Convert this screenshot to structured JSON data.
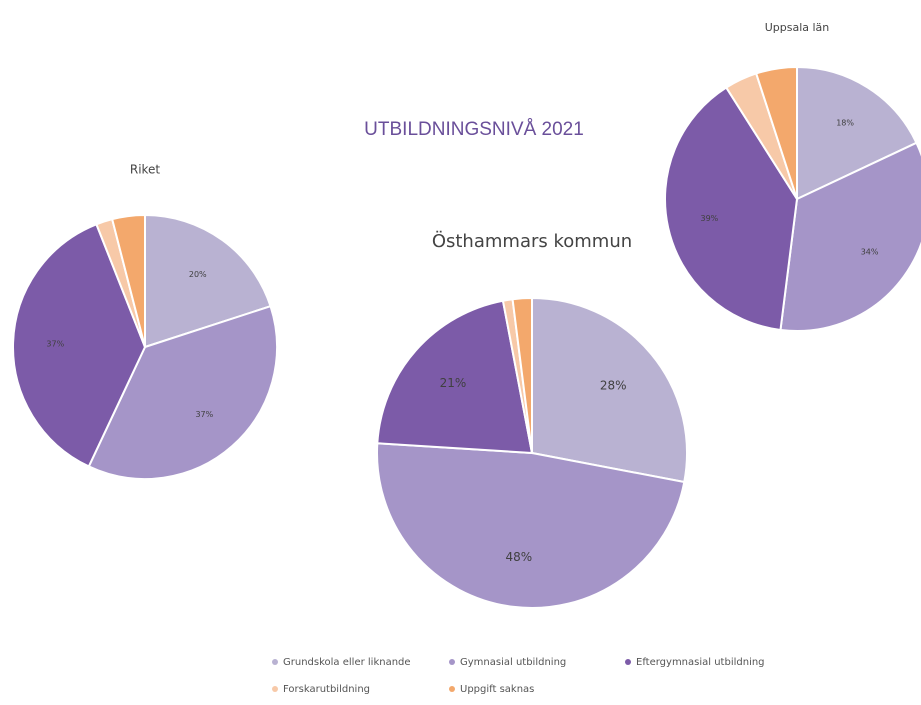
{
  "title": "UTBILDNINGSNIVÅ 2021",
  "chart_data": [
    {
      "type": "pie",
      "title": "Riket",
      "categories": [
        "Grundskola eller liknande",
        "Gymnasial utbildning",
        "Eftergymnasial utbildning",
        "Forskarutbildning",
        "Uppgift saknas"
      ],
      "values": [
        20,
        37,
        37,
        2,
        4
      ],
      "value_labels": [
        "20%",
        "37%",
        "37%",
        null,
        null
      ],
      "colors": [
        "#b9b2d2",
        "#a595c8",
        "#7c5ba8",
        "#f7c9a8",
        "#f3a86c"
      ]
    },
    {
      "type": "pie",
      "title": "Östhammars kommun",
      "categories": [
        "Grundskola eller liknande",
        "Gymnasial utbildning",
        "Eftergymnasial utbildning",
        "Forskarutbildning",
        "Uppgift saknas"
      ],
      "values": [
        28,
        48,
        21,
        1,
        2
      ],
      "value_labels": [
        "28%",
        "48%",
        "21%",
        null,
        null
      ],
      "colors": [
        "#b9b2d2",
        "#a595c8",
        "#7c5ba8",
        "#f7c9a8",
        "#f3a86c"
      ]
    },
    {
      "type": "pie",
      "title": "Uppsala län",
      "categories": [
        "Grundskola eller liknande",
        "Gymnasial utbildning",
        "Eftergymnasial utbildning",
        "Forskarutbildning",
        "Uppgift saknas"
      ],
      "values": [
        18,
        34,
        39,
        4,
        5
      ],
      "value_labels": [
        "18%",
        "34%",
        "39%",
        null,
        null
      ],
      "colors": [
        "#b9b2d2",
        "#a595c8",
        "#7c5ba8",
        "#f7c9a8",
        "#f3a86c"
      ]
    }
  ]
}
